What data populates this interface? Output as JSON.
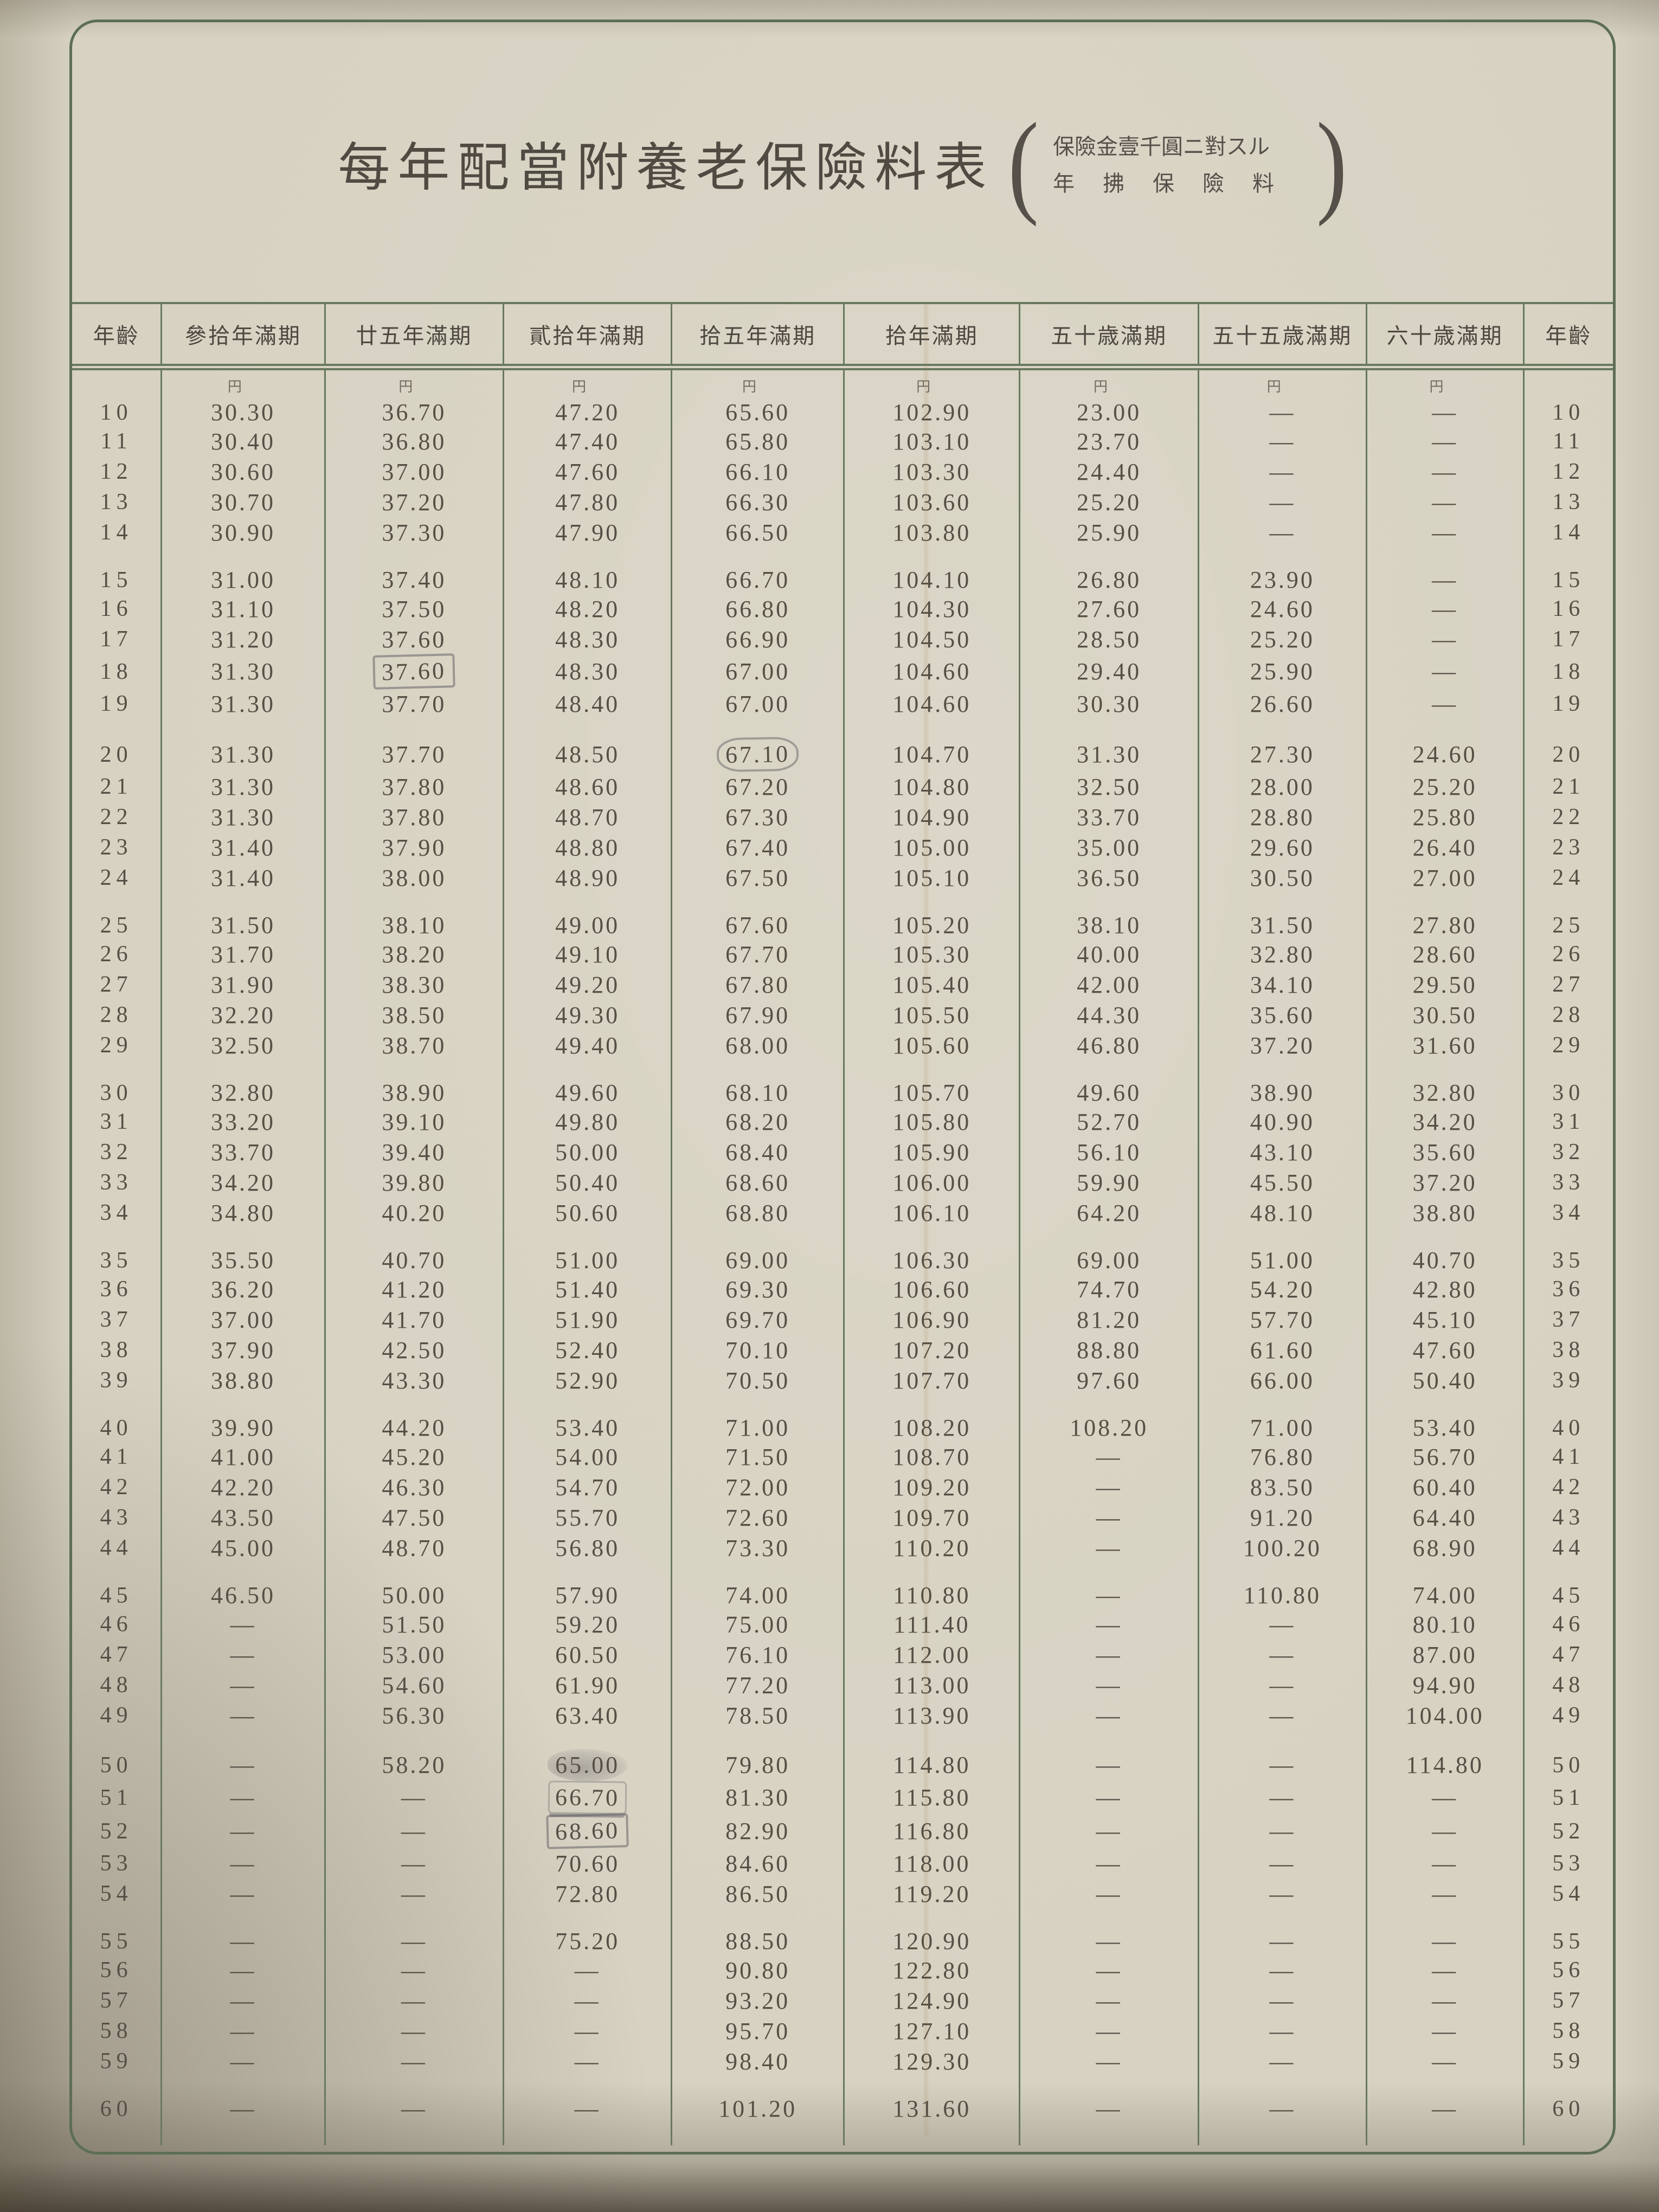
{
  "colors": {
    "paper": "#d7d2c2",
    "rule_green": "#68795f",
    "ink": "#564f45",
    "pencil_gray": "#646268"
  },
  "page": {
    "title": "每年配當附養老保險料表",
    "paren_open": "(",
    "paren_close": ")",
    "subtitle_line1": "保險金壹千圓ニ對スル",
    "subtitle_line2": "年拂保險料"
  },
  "table": {
    "headers": [
      "年齡",
      "參拾年滿期",
      "廿五年滿期",
      "貳拾年滿期",
      "拾五年滿期",
      "拾年滿期",
      "五十歳滿期",
      "五十五歳滿期",
      "六十歳滿期",
      "年齡"
    ],
    "unit_mark": "円",
    "yen_row_age": "10",
    "groups": [
      {
        "rows": [
          {
            "age": "10",
            "v": [
              "30.30",
              "36.70",
              "47.20",
              "65.60",
              "102.90",
              "23.00",
              "—",
              "—"
            ]
          },
          {
            "age": "11",
            "v": [
              "30.40",
              "36.80",
              "47.40",
              "65.80",
              "103.10",
              "23.70",
              "—",
              "—"
            ]
          },
          {
            "age": "12",
            "v": [
              "30.60",
              "37.00",
              "47.60",
              "66.10",
              "103.30",
              "24.40",
              "—",
              "—"
            ]
          },
          {
            "age": "13",
            "v": [
              "30.70",
              "37.20",
              "47.80",
              "66.30",
              "103.60",
              "25.20",
              "—",
              "—"
            ]
          },
          {
            "age": "14",
            "v": [
              "30.90",
              "37.30",
              "47.90",
              "66.50",
              "103.80",
              "25.90",
              "—",
              "—"
            ]
          }
        ]
      },
      {
        "rows": [
          {
            "age": "15",
            "v": [
              "31.00",
              "37.40",
              "48.10",
              "66.70",
              "104.10",
              "26.80",
              "23.90",
              "—"
            ]
          },
          {
            "age": "16",
            "v": [
              "31.10",
              "37.50",
              "48.20",
              "66.80",
              "104.30",
              "27.60",
              "24.60",
              "—"
            ]
          },
          {
            "age": "17",
            "v": [
              "31.20",
              "37.60",
              "48.30",
              "66.90",
              "104.50",
              "28.50",
              "25.20",
              "—"
            ]
          },
          {
            "age": "18",
            "v": [
              "31.30",
              "37.60",
              "48.30",
              "67.00",
              "104.60",
              "29.40",
              "25.90",
              "—"
            ]
          },
          {
            "age": "19",
            "v": [
              "31.30",
              "37.70",
              "48.40",
              "67.00",
              "104.60",
              "30.30",
              "26.60",
              "—"
            ]
          }
        ]
      },
      {
        "rows": [
          {
            "age": "20",
            "v": [
              "31.30",
              "37.70",
              "48.50",
              "67.10",
              "104.70",
              "31.30",
              "27.30",
              "24.60"
            ]
          },
          {
            "age": "21",
            "v": [
              "31.30",
              "37.80",
              "48.60",
              "67.20",
              "104.80",
              "32.50",
              "28.00",
              "25.20"
            ]
          },
          {
            "age": "22",
            "v": [
              "31.30",
              "37.80",
              "48.70",
              "67.30",
              "104.90",
              "33.70",
              "28.80",
              "25.80"
            ]
          },
          {
            "age": "23",
            "v": [
              "31.40",
              "37.90",
              "48.80",
              "67.40",
              "105.00",
              "35.00",
              "29.60",
              "26.40"
            ]
          },
          {
            "age": "24",
            "v": [
              "31.40",
              "38.00",
              "48.90",
              "67.50",
              "105.10",
              "36.50",
              "30.50",
              "27.00"
            ]
          }
        ]
      },
      {
        "rows": [
          {
            "age": "25",
            "v": [
              "31.50",
              "38.10",
              "49.00",
              "67.60",
              "105.20",
              "38.10",
              "31.50",
              "27.80"
            ]
          },
          {
            "age": "26",
            "v": [
              "31.70",
              "38.20",
              "49.10",
              "67.70",
              "105.30",
              "40.00",
              "32.80",
              "28.60"
            ]
          },
          {
            "age": "27",
            "v": [
              "31.90",
              "38.30",
              "49.20",
              "67.80",
              "105.40",
              "42.00",
              "34.10",
              "29.50"
            ]
          },
          {
            "age": "28",
            "v": [
              "32.20",
              "38.50",
              "49.30",
              "67.90",
              "105.50",
              "44.30",
              "35.60",
              "30.50"
            ]
          },
          {
            "age": "29",
            "v": [
              "32.50",
              "38.70",
              "49.40",
              "68.00",
              "105.60",
              "46.80",
              "37.20",
              "31.60"
            ]
          }
        ]
      },
      {
        "rows": [
          {
            "age": "30",
            "v": [
              "32.80",
              "38.90",
              "49.60",
              "68.10",
              "105.70",
              "49.60",
              "38.90",
              "32.80"
            ]
          },
          {
            "age": "31",
            "v": [
              "33.20",
              "39.10",
              "49.80",
              "68.20",
              "105.80",
              "52.70",
              "40.90",
              "34.20"
            ]
          },
          {
            "age": "32",
            "v": [
              "33.70",
              "39.40",
              "50.00",
              "68.40",
              "105.90",
              "56.10",
              "43.10",
              "35.60"
            ]
          },
          {
            "age": "33",
            "v": [
              "34.20",
              "39.80",
              "50.40",
              "68.60",
              "106.00",
              "59.90",
              "45.50",
              "37.20"
            ]
          },
          {
            "age": "34",
            "v": [
              "34.80",
              "40.20",
              "50.60",
              "68.80",
              "106.10",
              "64.20",
              "48.10",
              "38.80"
            ]
          }
        ]
      },
      {
        "rows": [
          {
            "age": "35",
            "v": [
              "35.50",
              "40.70",
              "51.00",
              "69.00",
              "106.30",
              "69.00",
              "51.00",
              "40.70"
            ]
          },
          {
            "age": "36",
            "v": [
              "36.20",
              "41.20",
              "51.40",
              "69.30",
              "106.60",
              "74.70",
              "54.20",
              "42.80"
            ]
          },
          {
            "age": "37",
            "v": [
              "37.00",
              "41.70",
              "51.90",
              "69.70",
              "106.90",
              "81.20",
              "57.70",
              "45.10"
            ]
          },
          {
            "age": "38",
            "v": [
              "37.90",
              "42.50",
              "52.40",
              "70.10",
              "107.20",
              "88.80",
              "61.60",
              "47.60"
            ]
          },
          {
            "age": "39",
            "v": [
              "38.80",
              "43.30",
              "52.90",
              "70.50",
              "107.70",
              "97.60",
              "66.00",
              "50.40"
            ]
          }
        ]
      },
      {
        "rows": [
          {
            "age": "40",
            "v": [
              "39.90",
              "44.20",
              "53.40",
              "71.00",
              "108.20",
              "108.20",
              "71.00",
              "53.40"
            ]
          },
          {
            "age": "41",
            "v": [
              "41.00",
              "45.20",
              "54.00",
              "71.50",
              "108.70",
              "—",
              "76.80",
              "56.70"
            ]
          },
          {
            "age": "42",
            "v": [
              "42.20",
              "46.30",
              "54.70",
              "72.00",
              "109.20",
              "—",
              "83.50",
              "60.40"
            ]
          },
          {
            "age": "43",
            "v": [
              "43.50",
              "47.50",
              "55.70",
              "72.60",
              "109.70",
              "—",
              "91.20",
              "64.40"
            ]
          },
          {
            "age": "44",
            "v": [
              "45.00",
              "48.70",
              "56.80",
              "73.30",
              "110.20",
              "—",
              "100.20",
              "68.90"
            ]
          }
        ]
      },
      {
        "rows": [
          {
            "age": "45",
            "v": [
              "46.50",
              "50.00",
              "57.90",
              "74.00",
              "110.80",
              "—",
              "110.80",
              "74.00"
            ]
          },
          {
            "age": "46",
            "v": [
              "—",
              "51.50",
              "59.20",
              "75.00",
              "111.40",
              "—",
              "—",
              "80.10"
            ]
          },
          {
            "age": "47",
            "v": [
              "—",
              "53.00",
              "60.50",
              "76.10",
              "112.00",
              "—",
              "—",
              "87.00"
            ]
          },
          {
            "age": "48",
            "v": [
              "—",
              "54.60",
              "61.90",
              "77.20",
              "113.00",
              "—",
              "—",
              "94.90"
            ]
          },
          {
            "age": "49",
            "v": [
              "—",
              "56.30",
              "63.40",
              "78.50",
              "113.90",
              "—",
              "—",
              "104.00"
            ]
          }
        ]
      },
      {
        "rows": [
          {
            "age": "50",
            "v": [
              "—",
              "58.20",
              "65.00",
              "79.80",
              "114.80",
              "—",
              "—",
              "114.80"
            ]
          },
          {
            "age": "51",
            "v": [
              "—",
              "—",
              "66.70",
              "81.30",
              "115.80",
              "—",
              "—",
              "—"
            ]
          },
          {
            "age": "52",
            "v": [
              "—",
              "—",
              "68.60",
              "82.90",
              "116.80",
              "—",
              "—",
              "—"
            ]
          },
          {
            "age": "53",
            "v": [
              "—",
              "—",
              "70.60",
              "84.60",
              "118.00",
              "—",
              "—",
              "—"
            ]
          },
          {
            "age": "54",
            "v": [
              "—",
              "—",
              "72.80",
              "86.50",
              "119.20",
              "—",
              "—",
              "—"
            ]
          }
        ]
      },
      {
        "rows": [
          {
            "age": "55",
            "v": [
              "—",
              "—",
              "75.20",
              "88.50",
              "120.90",
              "—",
              "—",
              "—"
            ]
          },
          {
            "age": "56",
            "v": [
              "—",
              "—",
              "—",
              "90.80",
              "122.80",
              "—",
              "—",
              "—"
            ]
          },
          {
            "age": "57",
            "v": [
              "—",
              "—",
              "—",
              "93.20",
              "124.90",
              "—",
              "—",
              "—"
            ]
          },
          {
            "age": "58",
            "v": [
              "—",
              "—",
              "—",
              "95.70",
              "127.10",
              "—",
              "—",
              "—"
            ]
          },
          {
            "age": "59",
            "v": [
              "—",
              "—",
              "—",
              "98.40",
              "129.30",
              "—",
              "—",
              "—"
            ]
          }
        ]
      },
      {
        "rows": [
          {
            "age": "60",
            "v": [
              "—",
              "—",
              "—",
              "101.20",
              "131.60",
              "—",
              "—",
              "—"
            ]
          }
        ]
      }
    ],
    "annotations": [
      {
        "age": "18",
        "col": 1,
        "type": "box"
      },
      {
        "age": "20",
        "col": 3,
        "type": "oval"
      },
      {
        "age": "50",
        "col": 2,
        "type": "smudge"
      },
      {
        "age": "51",
        "col": 2,
        "type": "underline"
      },
      {
        "age": "52",
        "col": 2,
        "type": "box"
      }
    ]
  }
}
